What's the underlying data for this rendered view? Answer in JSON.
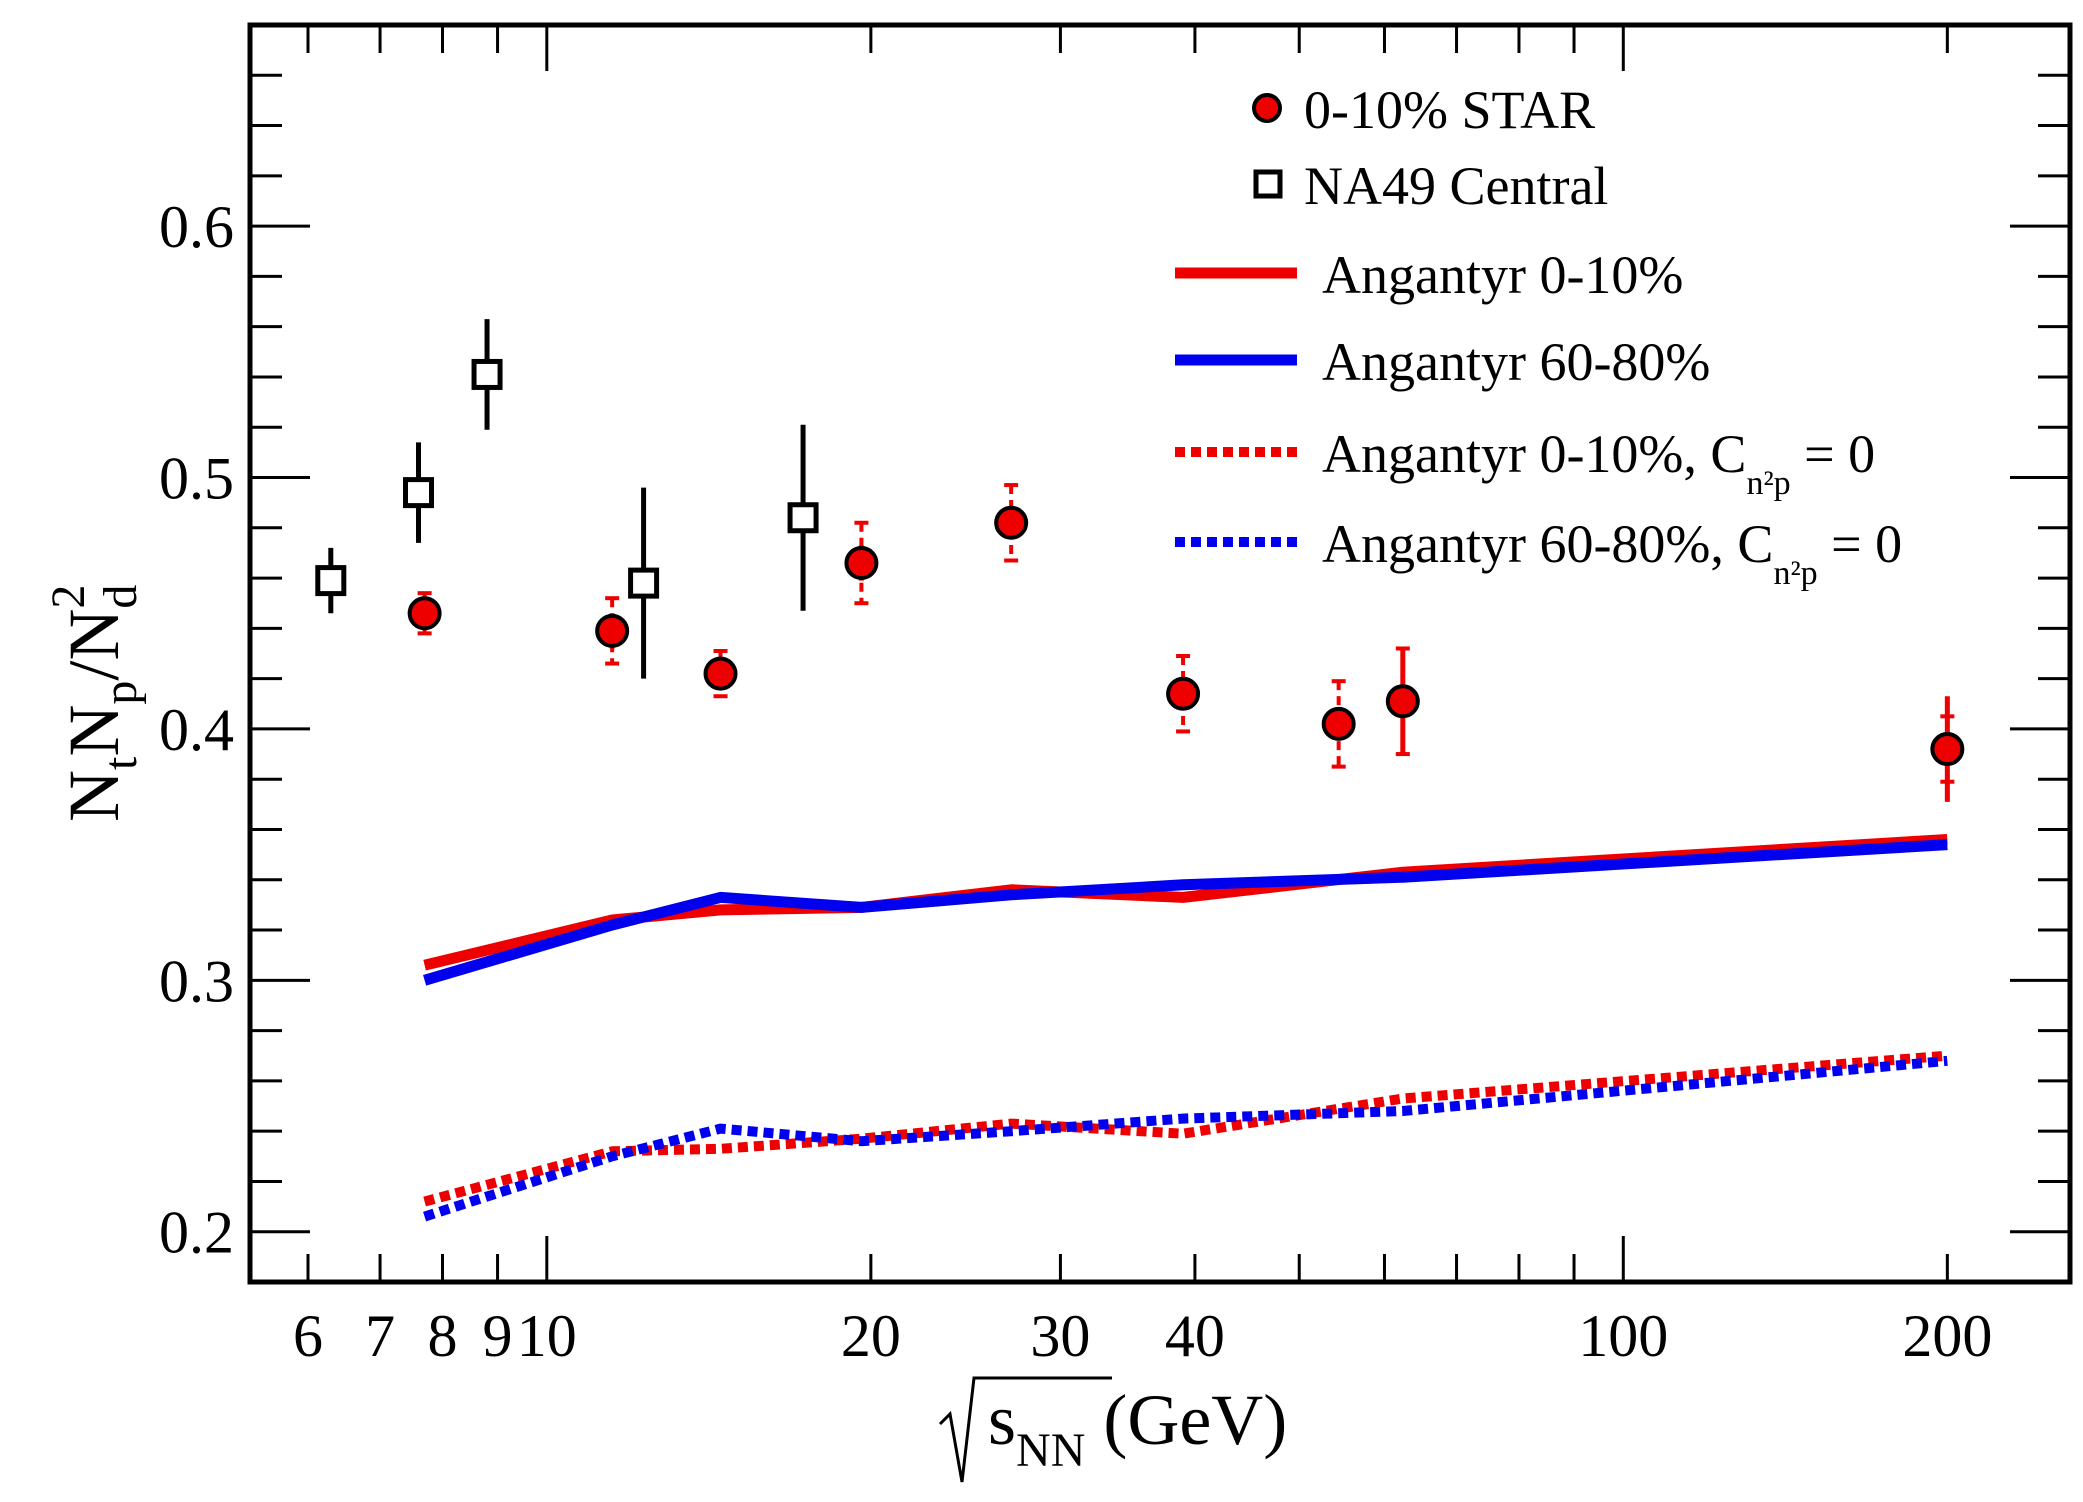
{
  "chart_data": {
    "type": "scatter",
    "title": "",
    "x_axis": {
      "scale": "log",
      "range": [
        5.3,
        260
      ],
      "tick_labels": [
        {
          "value": 6,
          "label": "6"
        },
        {
          "value": 7,
          "label": "7"
        },
        {
          "value": 8,
          "label": "8"
        },
        {
          "value": 9,
          "label": "9"
        },
        {
          "value": 10,
          "label": "10"
        },
        {
          "value": 20,
          "label": "20"
        },
        {
          "value": 30,
          "label": "30"
        },
        {
          "value": 40,
          "label": "40"
        },
        {
          "value": 100,
          "label": "100"
        },
        {
          "value": 200,
          "label": "200"
        }
      ],
      "label": {
        "main": "s",
        "sub": "NN",
        "suffix": " (GeV)"
      }
    },
    "y_axis": {
      "scale": "linear",
      "range": [
        0.18,
        0.68
      ],
      "tick_labels": [
        {
          "value": 0.2,
          "label": "0.2"
        },
        {
          "value": 0.3,
          "label": "0.3"
        },
        {
          "value": 0.4,
          "label": "0.4"
        },
        {
          "value": 0.5,
          "label": "0.5"
        },
        {
          "value": 0.6,
          "label": "0.6"
        }
      ],
      "label": {
        "N1": "N",
        "s1": "t",
        "N2": "N",
        "s2": "p",
        "slash": "/",
        "N3": "N",
        "s3": "d",
        "sup": "2"
      }
    },
    "legend_placement": "top-right",
    "legend": {
      "star": "0-10% STAR",
      "na49": "NA49 Central",
      "ang010": "Angantyr  0-10%",
      "ang6080": "Angantyr  60-80%",
      "ang010c": {
        "text": "Angantyr  0-10%, C",
        "sub": "n²p",
        "suffix": " = 0"
      },
      "ang6080c": {
        "text": "Angantyr  60-80%, C",
        "sub": "n²p",
        "suffix": " = 0"
      }
    },
    "colors": {
      "red": "#ee0000",
      "blue": "#0000ee",
      "black": "#000000"
    },
    "series": [
      {
        "key": "star",
        "style": "marker-circle",
        "color": "#ee0000",
        "points": [
          {
            "x": 7.7,
            "y": 0.446,
            "stat": 0.006,
            "sys": 0.008
          },
          {
            "x": 11.5,
            "y": 0.439,
            "stat": 0.007,
            "sys": 0.013
          },
          {
            "x": 14.5,
            "y": 0.422,
            "stat": 0.006,
            "sys": 0.009
          },
          {
            "x": 19.6,
            "y": 0.466,
            "stat": 0.007,
            "sys": 0.016
          },
          {
            "x": 27,
            "y": 0.482,
            "stat": 0.006,
            "sys": 0.015
          },
          {
            "x": 39,
            "y": 0.414,
            "stat": 0.006,
            "sys": 0.015
          },
          {
            "x": 54.4,
            "y": 0.402,
            "stat": 0.006,
            "sys": 0.017
          },
          {
            "x": 62.4,
            "y": 0.411,
            "stat": 0.021,
            "sys": 0.021
          },
          {
            "x": 200,
            "y": 0.392,
            "stat": 0.021,
            "sys": 0.013
          }
        ]
      },
      {
        "key": "na49",
        "style": "marker-square",
        "color": "#000000",
        "points": [
          {
            "x": 6.3,
            "y": 0.459,
            "err": 0.013
          },
          {
            "x": 7.6,
            "y": 0.494,
            "err": 0.02
          },
          {
            "x": 8.8,
            "y": 0.541,
            "err": 0.022
          },
          {
            "x": 12.3,
            "y": 0.458,
            "err": 0.038
          },
          {
            "x": 17.3,
            "y": 0.484,
            "err": 0.037
          }
        ]
      },
      {
        "key": "ang010",
        "style": "solid",
        "color": "#ee0000",
        "x": [
          7.7,
          11.5,
          14.5,
          19.6,
          27,
          39,
          62.4,
          200
        ],
        "y": [
          0.306,
          0.324,
          0.328,
          0.329,
          0.336,
          0.333,
          0.343,
          0.356
        ]
      },
      {
        "key": "ang6080",
        "style": "solid",
        "color": "#0000ee",
        "x": [
          7.7,
          11.5,
          14.5,
          19.6,
          27,
          39,
          62.4,
          200
        ],
        "y": [
          0.3,
          0.322,
          0.333,
          0.329,
          0.334,
          0.338,
          0.341,
          0.354
        ]
      },
      {
        "key": "ang010c",
        "style": "dotted",
        "color": "#ee0000",
        "x": [
          7.7,
          11.5,
          14.5,
          19.6,
          27,
          39,
          62.4,
          200
        ],
        "y": [
          0.212,
          0.232,
          0.233,
          0.237,
          0.243,
          0.239,
          0.253,
          0.27
        ]
      },
      {
        "key": "ang6080c",
        "style": "dotted",
        "color": "#0000ee",
        "x": [
          7.7,
          11.5,
          14.5,
          19.6,
          27,
          39,
          62.4,
          200
        ],
        "y": [
          0.206,
          0.23,
          0.241,
          0.236,
          0.24,
          0.245,
          0.248,
          0.268
        ]
      }
    ]
  }
}
